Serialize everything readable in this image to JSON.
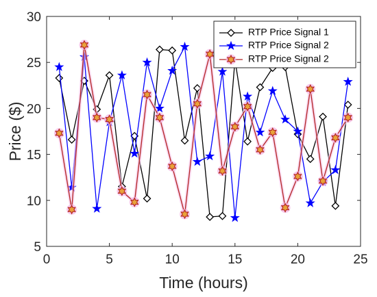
{
  "chart_data": {
    "type": "line",
    "title": "",
    "xlabel": "Time (hours)",
    "ylabel": "Price ($)",
    "xlim": [
      0,
      25
    ],
    "ylim": [
      5,
      30
    ],
    "xticks": [
      0,
      5,
      10,
      15,
      20,
      25
    ],
    "yticks": [
      5,
      10,
      15,
      20,
      25,
      30
    ],
    "grid": false,
    "legend_position": "top-right",
    "x": [
      1,
      2,
      3,
      4,
      5,
      6,
      7,
      8,
      9,
      10,
      11,
      12,
      13,
      14,
      15,
      16,
      17,
      18,
      19,
      20,
      21,
      22,
      23,
      24
    ],
    "series": [
      {
        "name": "RTP Price Signal 1",
        "color": "#000000",
        "marker": "diamond",
        "values": [
          23.3,
          16.6,
          23.0,
          19.9,
          23.6,
          11.5,
          17.0,
          10.2,
          26.4,
          26.3,
          16.5,
          22.2,
          8.2,
          8.3,
          25.3,
          16.4,
          22.3,
          24.4,
          24.5,
          17.2,
          14.5,
          19.1,
          9.4,
          20.4
        ]
      },
      {
        "name": "RTP Price Signal 2",
        "color": "#0000ff",
        "marker": "star",
        "values": [
          24.5,
          11.4,
          25.6,
          9.1,
          18.5,
          23.6,
          15.1,
          25.0,
          20.0,
          24.1,
          26.7,
          14.2,
          14.8,
          24.0,
          8.1,
          21.3,
          17.4,
          21.9,
          18.8,
          17.5,
          9.7,
          12.0,
          13.3,
          22.9
        ]
      },
      {
        "name": "RTP Price Signal 2",
        "color": "#b22222",
        "marker": "hexagram",
        "values": [
          17.3,
          9.0,
          26.9,
          19.0,
          18.8,
          11.0,
          9.8,
          21.5,
          19.0,
          13.7,
          8.5,
          20.5,
          25.9,
          13.2,
          18.0,
          20.2,
          15.5,
          17.4,
          9.2,
          12.6,
          22.1,
          12.1,
          16.8,
          19.0
        ]
      }
    ]
  }
}
